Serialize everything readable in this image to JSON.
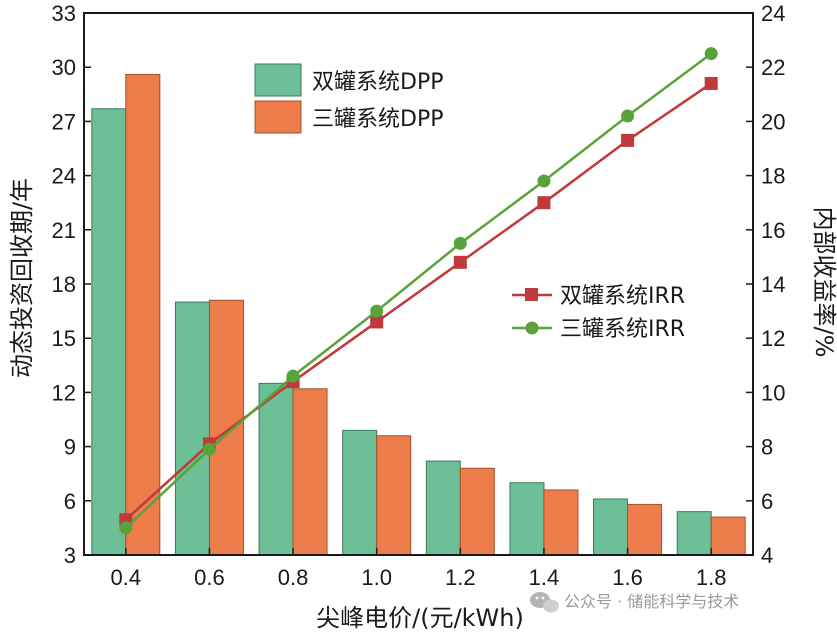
{
  "chart_data": {
    "type": "bar+line",
    "categories": [
      "0.4",
      "0.6",
      "0.8",
      "1.0",
      "1.2",
      "1.4",
      "1.6",
      "1.8"
    ],
    "xlabel": "尖峰电价/(元/kWh)",
    "ylabel_left": "动态投资回收期/年",
    "ylabel_right": "内部收益率/%",
    "ylim_left": [
      3,
      33
    ],
    "yticks_left": [
      "3",
      "6",
      "9",
      "12",
      "15",
      "18",
      "21",
      "24",
      "27",
      "30",
      "33"
    ],
    "ylim_right": [
      4,
      24
    ],
    "yticks_right": [
      "4",
      "6",
      "8",
      "10",
      "12",
      "14",
      "16",
      "18",
      "20",
      "22",
      "24"
    ],
    "bar_series": [
      {
        "name": "双罐系统DPP",
        "color": "#6cbf96",
        "values": [
          27.7,
          17.0,
          12.5,
          9.9,
          8.2,
          7.0,
          6.1,
          5.4
        ]
      },
      {
        "name": "三罐系统DPP",
        "color": "#ee7d4c",
        "values": [
          29.6,
          17.1,
          12.2,
          9.6,
          7.8,
          6.6,
          5.8,
          5.1
        ]
      }
    ],
    "line_series": [
      {
        "name": "双罐系统IRR",
        "color": "#c0393b",
        "marker": "square",
        "values": [
          5.3,
          8.1,
          10.4,
          12.6,
          14.8,
          17.0,
          19.3,
          21.4
        ]
      },
      {
        "name": "三罐系统IRR",
        "color": "#5aa33a",
        "marker": "circle",
        "values": [
          5.0,
          7.9,
          10.6,
          13.0,
          15.5,
          17.8,
          20.2,
          22.5
        ]
      }
    ]
  },
  "watermark": {
    "text": "公众号 · 储能科学与技术",
    "icon": "wechat-icon"
  }
}
